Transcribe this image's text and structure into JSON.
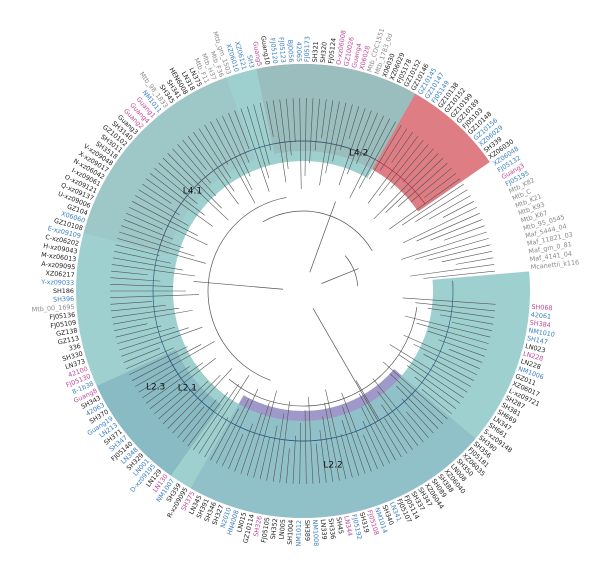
{
  "colors": {
    "L2_2": "#8e87c0",
    "L2_1": "#525aa0",
    "L4_1": "#f2b5bb",
    "L4_2": "#d9666f",
    "L2_3": "#8ec8c8",
    "black": "#222222",
    "blue": "#3a7fc1",
    "magenta": "#c0479a",
    "gray": "#8a8a8a",
    "branch_L2_3": "#2f5f7e",
    "branch_L2_2": "#4a4290",
    "branch_L2_1": "#2a3574",
    "branch_L4_1": "#b04a58",
    "branch_L4_2": "#a7313f",
    "branch_other": "#555555"
  },
  "clades": [
    {
      "key": "L2_2",
      "label": "L2.2",
      "start": 201,
      "end": 240
    },
    {
      "key": "L2_1",
      "label": "L2.1",
      "start": 244,
      "end": 258
    },
    {
      "key": "L4_1",
      "label": "L4.1",
      "start": 279,
      "end": 306
    },
    {
      "key": "L4_2",
      "label": "L4.2",
      "start": 311,
      "end": 344
    },
    {
      "key": "L2_3",
      "label": "L2.3",
      "start": 360,
      "end": 513
    }
  ],
  "leaves": [
    {
      "name": "SH068",
      "color": "magenta"
    },
    {
      "name": "42061",
      "color": "blue"
    },
    {
      "name": "SH384",
      "color": "magenta"
    },
    {
      "name": "NM1010",
      "color": "blue"
    },
    {
      "name": "SH147",
      "color": "blue"
    },
    {
      "name": "LN023",
      "color": "black"
    },
    {
      "name": "LN228",
      "color": "magenta"
    },
    {
      "name": "LN228",
      "color": "black"
    },
    {
      "name": "NM1006",
      "color": "blue"
    },
    {
      "name": "GZ011",
      "color": "black"
    },
    {
      "name": "XZ06017",
      "color": "black"
    },
    {
      "name": "L-xz09721",
      "color": "black"
    },
    {
      "name": "SH287",
      "color": "black"
    },
    {
      "name": "SH381",
      "color": "black"
    },
    {
      "name": "SH669",
      "color": "black"
    },
    {
      "name": "LN347",
      "color": "black"
    },
    {
      "name": "SH661",
      "color": "black"
    },
    {
      "name": "S-xz09148",
      "color": "black"
    },
    {
      "name": "SH390",
      "color": "black"
    },
    {
      "name": "SH356",
      "color": "black"
    },
    {
      "name": "FJ05181",
      "color": "black"
    },
    {
      "name": "XZ06035",
      "color": "black"
    },
    {
      "name": "SH350",
      "color": "black"
    },
    {
      "name": "LN008",
      "color": "black"
    },
    {
      "name": "XZ06040",
      "color": "black"
    },
    {
      "name": "SH388",
      "color": "black"
    },
    {
      "name": "SH089",
      "color": "black"
    },
    {
      "name": "XZ06044",
      "color": "black"
    },
    {
      "name": "SH347",
      "color": "black"
    },
    {
      "name": "SH337",
      "color": "black"
    },
    {
      "name": "FJ05114",
      "color": "black"
    },
    {
      "name": "FJ05107",
      "color": "black"
    },
    {
      "name": "LN341",
      "color": "blue"
    },
    {
      "name": "SH340",
      "color": "black"
    },
    {
      "name": "NM1014",
      "color": "blue"
    },
    {
      "name": "FJ05108",
      "color": "magenta"
    },
    {
      "name": "SH319",
      "color": "black"
    },
    {
      "name": "FJ05192",
      "color": "blue"
    },
    {
      "name": "LN344",
      "color": "magenta"
    },
    {
      "name": "SH45",
      "color": "black"
    },
    {
      "name": "SH336",
      "color": "black"
    },
    {
      "name": "LN339",
      "color": "black"
    },
    {
      "name": "NM1008",
      "color": "blue"
    },
    {
      "name": "SH389",
      "color": "black"
    },
    {
      "name": "NM1012",
      "color": "blue"
    },
    {
      "name": "SH1004",
      "color": "black"
    },
    {
      "name": "LN005",
      "color": "black"
    },
    {
      "name": "SH352",
      "color": "black"
    },
    {
      "name": "FJ05105",
      "color": "black"
    },
    {
      "name": "SH326",
      "color": "magenta"
    },
    {
      "name": "GZ10114",
      "color": "black"
    },
    {
      "name": "LN015",
      "color": "black"
    },
    {
      "name": "HN4008",
      "color": "blue"
    },
    {
      "name": "N2010",
      "color": "blue"
    },
    {
      "name": "SH327",
      "color": "black"
    },
    {
      "name": "SH346",
      "color": "black"
    },
    {
      "name": "SH391",
      "color": "black"
    },
    {
      "name": "LN345",
      "color": "black"
    },
    {
      "name": "SH375",
      "color": "magenta"
    },
    {
      "name": "R-xz09095",
      "color": "black"
    },
    {
      "name": "SH359",
      "color": "black"
    },
    {
      "name": "NM1007",
      "color": "blue"
    },
    {
      "name": "LN130",
      "color": "magenta"
    },
    {
      "name": "LN129",
      "color": "black"
    },
    {
      "name": "D-xz09195",
      "color": "blue"
    },
    {
      "name": "LN001",
      "color": "blue"
    },
    {
      "name": "SH329",
      "color": "black"
    },
    {
      "name": "LN348",
      "color": "blue"
    },
    {
      "name": "FJ05140",
      "color": "black"
    },
    {
      "name": "SH347",
      "color": "blue"
    },
    {
      "name": "SH371",
      "color": "black"
    },
    {
      "name": "LN213",
      "color": "blue"
    },
    {
      "name": "Guang19",
      "color": "blue"
    },
    {
      "name": "SH370",
      "color": "black"
    },
    {
      "name": "42063",
      "color": "blue"
    },
    {
      "name": "SH343",
      "color": "black"
    },
    {
      "name": "Guang8",
      "color": "magenta"
    },
    {
      "name": "8-1b38",
      "color": "blue"
    },
    {
      "name": "FJ05130",
      "color": "magenta"
    },
    {
      "name": "42100",
      "color": "magenta"
    },
    {
      "name": "LN373",
      "color": "black"
    },
    {
      "name": "SH330",
      "color": "black"
    },
    {
      "name": "336",
      "color": "black"
    },
    {
      "name": "GZ113",
      "color": "black"
    },
    {
      "name": "GZ138",
      "color": "black"
    },
    {
      "name": "FJ05109",
      "color": "black"
    },
    {
      "name": "FJ05136",
      "color": "black"
    },
    {
      "name": "Mtb_00_1695",
      "color": "gray"
    },
    {
      "name": "SH396",
      "color": "blue"
    },
    {
      "name": "SH186",
      "color": "black"
    },
    {
      "name": "Y-xz09033",
      "color": "blue"
    },
    {
      "name": "XZ06217",
      "color": "black"
    },
    {
      "name": "A-xz09095",
      "color": "black"
    },
    {
      "name": "M-xz06013",
      "color": "black"
    },
    {
      "name": "H-xz09043",
      "color": "black"
    },
    {
      "name": "C-xz06202",
      "color": "black"
    },
    {
      "name": "E-xz09109",
      "color": "blue"
    },
    {
      "name": "GZ10108",
      "color": "black"
    },
    {
      "name": "X06060",
      "color": "blue"
    },
    {
      "name": "GZ104",
      "color": "black"
    },
    {
      "name": "U-xz09006",
      "color": "black"
    },
    {
      "name": "Q-xz09137",
      "color": "black"
    },
    {
      "name": "O-xz09121",
      "color": "black"
    },
    {
      "name": "I-xz09061",
      "color": "black"
    },
    {
      "name": "N-xz06042",
      "color": "black"
    },
    {
      "name": "X-xz09017",
      "color": "black"
    },
    {
      "name": "V-xz09048",
      "color": "black"
    },
    {
      "name": "SH3518",
      "color": "black"
    },
    {
      "name": "SH3011",
      "color": "black"
    },
    {
      "name": "GZ10102",
      "color": "black"
    },
    {
      "name": "SH3140",
      "color": "black"
    },
    {
      "name": "Guang3",
      "color": "black"
    },
    {
      "name": "Guang2",
      "color": "magenta"
    },
    {
      "name": "Guang4",
      "color": "magenta"
    },
    {
      "name": "Guang1",
      "color": "magenta"
    },
    {
      "name": "NM1011",
      "color": "blue"
    },
    {
      "name": "Mtb_98_1833",
      "color": "gray"
    },
    {
      "name": "SH345",
      "color": "black"
    },
    {
      "name": "SH341",
      "color": "black"
    },
    {
      "name": "HEN6008",
      "color": "black"
    },
    {
      "name": "LN318",
      "color": "black"
    },
    {
      "name": "LN375",
      "color": "black"
    },
    {
      "name": "Mtb_F11",
      "color": "gray"
    },
    {
      "name": "Mtb_H37",
      "color": "gray"
    },
    {
      "name": "Mtb_F36",
      "color": "gray"
    },
    {
      "name": "Mtb_gm_1503",
      "color": "gray"
    },
    {
      "name": "XZ06010",
      "color": "blue"
    },
    {
      "name": "XZ06121",
      "color": "blue"
    },
    {
      "name": "SH3",
      "color": "blue"
    },
    {
      "name": "Guang5",
      "color": "magenta"
    },
    {
      "name": "Guang10",
      "color": "black"
    },
    {
      "name": "FJ05120",
      "color": "blue"
    },
    {
      "name": "FJ05123",
      "color": "blue"
    },
    {
      "name": "BJ0056",
      "color": "blue"
    },
    {
      "name": "42065",
      "color": "blue"
    },
    {
      "name": "FJ05173",
      "color": "blue"
    },
    {
      "name": "SH321",
      "color": "black"
    },
    {
      "name": "SH320",
      "color": "black"
    },
    {
      "name": "FJ05124",
      "color": "black"
    },
    {
      "name": "O-xz06008",
      "color": "magenta"
    },
    {
      "name": "GZ10026",
      "color": "magenta"
    },
    {
      "name": "Guang4",
      "color": "magenta"
    },
    {
      "name": "X06028",
      "color": "magenta"
    },
    {
      "name": "Mtb_CDC1551",
      "color": "gray"
    },
    {
      "name": "Mtb_1783_0d",
      "color": "gray"
    },
    {
      "name": "X06030",
      "color": "black"
    },
    {
      "name": "XZ06029",
      "color": "black"
    },
    {
      "name": "FJ05178",
      "color": "black"
    },
    {
      "name": "GZ10152",
      "color": "black"
    },
    {
      "name": "GZ10146",
      "color": "black"
    },
    {
      "name": "GZ10145",
      "color": "blue"
    },
    {
      "name": "GZ10147",
      "color": "blue"
    },
    {
      "name": "FJ05149",
      "color": "blue"
    },
    {
      "name": "GZ10138",
      "color": "black"
    },
    {
      "name": "GZ10152",
      "color": "black"
    },
    {
      "name": "GZ10199",
      "color": "black"
    },
    {
      "name": "GZ10189",
      "color": "black"
    },
    {
      "name": "FJ05103",
      "color": "black"
    },
    {
      "name": "GZ10148",
      "color": "black"
    },
    {
      "name": "GZ10156",
      "color": "blue"
    },
    {
      "name": "XZ06029",
      "color": "blue"
    },
    {
      "name": "SH339",
      "color": "black"
    },
    {
      "name": "XZ06030",
      "color": "black"
    },
    {
      "name": "XZ06048",
      "color": "blue"
    },
    {
      "name": "FJ05132",
      "color": "blue"
    },
    {
      "name": "Guang3",
      "color": "magenta"
    },
    {
      "name": "FJ05195",
      "color": "blue"
    },
    {
      "name": "Mtb_K82",
      "color": "gray"
    },
    {
      "name": "Mtb_C",
      "color": "gray"
    },
    {
      "name": "Mtb_K21",
      "color": "gray"
    },
    {
      "name": "Mtb_K93",
      "color": "gray"
    },
    {
      "name": "Mtb_K67",
      "color": "gray"
    },
    {
      "name": "Mtb_95_0545",
      "color": "gray"
    },
    {
      "name": "Maf_5444_04",
      "color": "gray"
    },
    {
      "name": "Maf_11821_03",
      "color": "gray"
    },
    {
      "name": "Maf_gm_0_81",
      "color": "gray"
    },
    {
      "name": "Maf_4141_04",
      "color": "gray"
    },
    {
      "name": "Mcanettii_k116",
      "color": "gray"
    }
  ]
}
